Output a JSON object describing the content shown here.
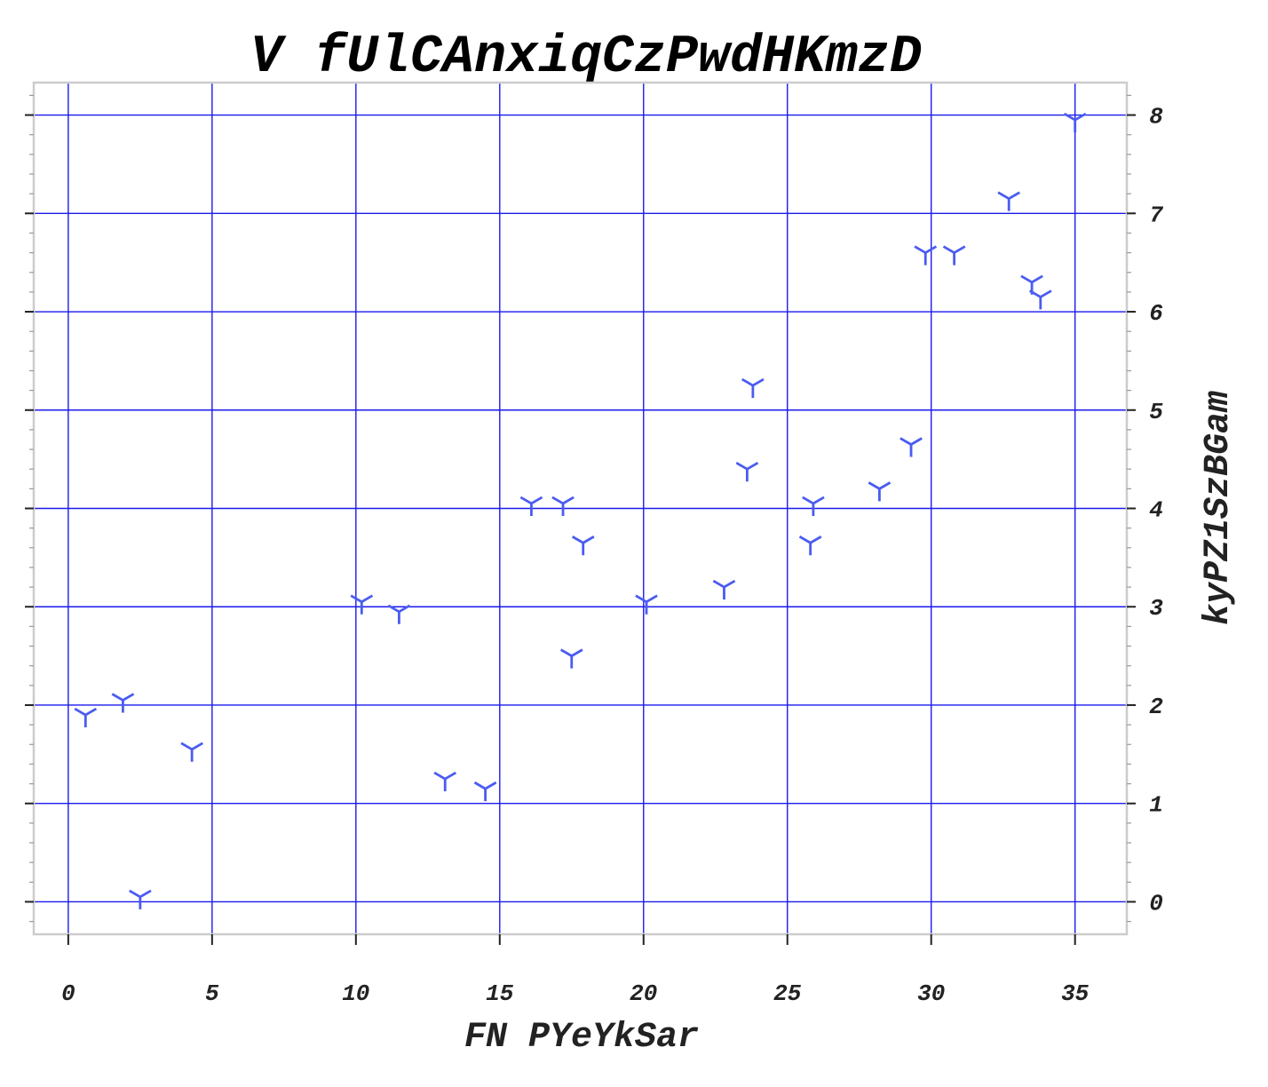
{
  "chart_data": {
    "type": "scatter",
    "title": "V fUlCAnxiqCzPwdHKmzD",
    "xlabel": "FN PYeYkSar",
    "ylabel": "kyPZ1SzBGam",
    "xlim": [
      -1.2,
      36.8
    ],
    "ylim": [
      -0.33,
      8.33
    ],
    "xticks": [
      0,
      5,
      10,
      15,
      20,
      25,
      30,
      35
    ],
    "yticks": [
      0,
      1,
      2,
      3,
      4,
      5,
      6,
      7,
      8
    ],
    "x_tick_labels": [
      "0",
      "5",
      "10",
      "15",
      "20",
      "25",
      "30",
      "35"
    ],
    "y_tick_labels": [
      "0",
      "1",
      "2",
      "3",
      "4",
      "5",
      "6",
      "7",
      "8"
    ],
    "y_axis_position": "right",
    "grid": true,
    "marker": "tri_down",
    "colors": {
      "marker": "#4a5cf0",
      "grid": "#1a1aee",
      "frame": "#cccccc"
    },
    "series": [
      {
        "x": [
          0.6,
          1.9,
          2.5,
          4.3,
          10.2,
          11.5,
          13.1,
          14.5,
          16.1,
          17.2,
          17.5,
          17.9,
          20.1,
          22.8,
          23.6,
          23.8,
          25.8,
          25.9,
          28.2,
          29.3,
          29.8,
          30.8,
          32.7,
          33.5,
          33.8,
          35.0
        ],
        "y": [
          1.9,
          2.05,
          0.05,
          1.55,
          3.05,
          2.95,
          1.25,
          1.15,
          4.05,
          4.05,
          2.5,
          3.65,
          3.05,
          3.2,
          4.4,
          5.25,
          3.65,
          4.05,
          4.2,
          4.65,
          6.6,
          6.6,
          7.15,
          6.3,
          6.15,
          7.95
        ]
      }
    ]
  }
}
